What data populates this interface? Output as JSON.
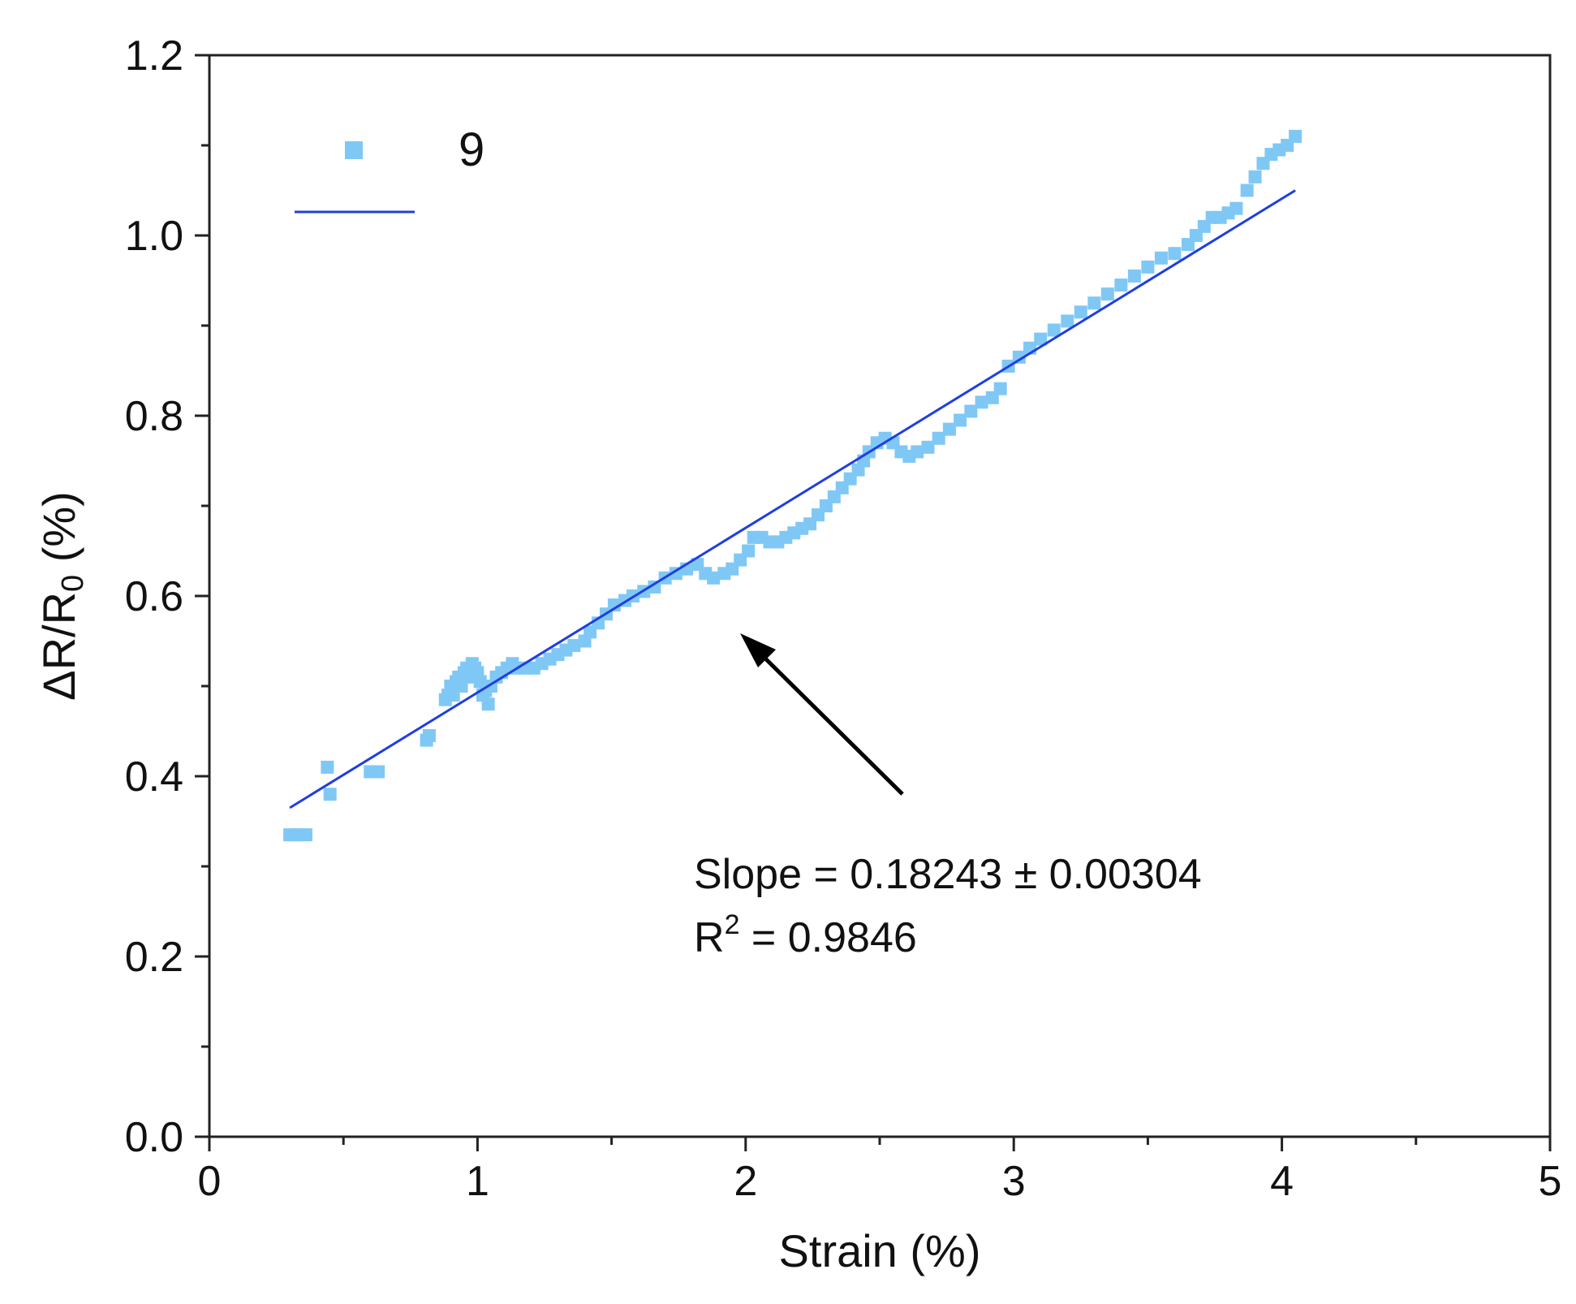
{
  "chart_data": {
    "type": "scatter",
    "xlabel": "Strain (%)",
    "ylabel": {
      "main": "ΔR/R",
      "sub": "0",
      "unit": " (%)"
    },
    "xlim": [
      0,
      5
    ],
    "ylim": [
      0,
      1.2
    ],
    "x_ticks": [
      "0",
      "1",
      "2",
      "3",
      "4",
      "5"
    ],
    "y_ticks": [
      "0.0",
      "0.2",
      "0.4",
      "0.6",
      "0.8",
      "1.0",
      "1.2"
    ],
    "grid": false,
    "legend": {
      "position": "top-left",
      "label": "9"
    },
    "colors": {
      "points": "#7fc8f5",
      "fit": "#1f3fe0",
      "arrow": "#000000"
    },
    "series": [
      {
        "name": "9",
        "kind": "scatter",
        "points": [
          [
            0.3,
            0.335
          ],
          [
            0.33,
            0.335
          ],
          [
            0.36,
            0.335
          ],
          [
            0.44,
            0.41
          ],
          [
            0.45,
            0.38
          ],
          [
            0.6,
            0.405
          ],
          [
            0.63,
            0.405
          ],
          [
            0.81,
            0.44
          ],
          [
            0.82,
            0.445
          ],
          [
            0.88,
            0.485
          ],
          [
            0.89,
            0.49
          ],
          [
            0.9,
            0.5
          ],
          [
            0.91,
            0.49
          ],
          [
            0.92,
            0.505
          ],
          [
            0.93,
            0.51
          ],
          [
            0.94,
            0.5
          ],
          [
            0.95,
            0.515
          ],
          [
            0.96,
            0.52
          ],
          [
            0.97,
            0.51
          ],
          [
            0.98,
            0.525
          ],
          [
            0.99,
            0.52
          ],
          [
            1.0,
            0.515
          ],
          [
            1.01,
            0.505
          ],
          [
            1.02,
            0.49
          ],
          [
            1.03,
            0.495
          ],
          [
            1.04,
            0.48
          ],
          [
            1.05,
            0.5
          ],
          [
            1.07,
            0.51
          ],
          [
            1.09,
            0.515
          ],
          [
            1.11,
            0.52
          ],
          [
            1.13,
            0.525
          ],
          [
            1.15,
            0.52
          ],
          [
            1.18,
            0.52
          ],
          [
            1.21,
            0.52
          ],
          [
            1.24,
            0.525
          ],
          [
            1.27,
            0.53
          ],
          [
            1.3,
            0.535
          ],
          [
            1.33,
            0.54
          ],
          [
            1.36,
            0.545
          ],
          [
            1.4,
            0.55
          ],
          [
            1.42,
            0.56
          ],
          [
            1.45,
            0.57
          ],
          [
            1.48,
            0.58
          ],
          [
            1.51,
            0.59
          ],
          [
            1.55,
            0.595
          ],
          [
            1.58,
            0.6
          ],
          [
            1.62,
            0.605
          ],
          [
            1.66,
            0.61
          ],
          [
            1.7,
            0.62
          ],
          [
            1.74,
            0.625
          ],
          [
            1.78,
            0.63
          ],
          [
            1.82,
            0.635
          ],
          [
            1.85,
            0.625
          ],
          [
            1.88,
            0.62
          ],
          [
            1.92,
            0.625
          ],
          [
            1.95,
            0.63
          ],
          [
            1.98,
            0.64
          ],
          [
            2.01,
            0.65
          ],
          [
            2.03,
            0.665
          ],
          [
            2.06,
            0.665
          ],
          [
            2.09,
            0.66
          ],
          [
            2.12,
            0.66
          ],
          [
            2.15,
            0.665
          ],
          [
            2.18,
            0.67
          ],
          [
            2.21,
            0.675
          ],
          [
            2.24,
            0.68
          ],
          [
            2.27,
            0.69
          ],
          [
            2.3,
            0.7
          ],
          [
            2.33,
            0.71
          ],
          [
            2.36,
            0.72
          ],
          [
            2.39,
            0.73
          ],
          [
            2.42,
            0.74
          ],
          [
            2.44,
            0.75
          ],
          [
            2.46,
            0.76
          ],
          [
            2.49,
            0.77
          ],
          [
            2.52,
            0.775
          ],
          [
            2.55,
            0.77
          ],
          [
            2.58,
            0.76
          ],
          [
            2.61,
            0.755
          ],
          [
            2.64,
            0.76
          ],
          [
            2.68,
            0.765
          ],
          [
            2.72,
            0.775
          ],
          [
            2.76,
            0.785
          ],
          [
            2.8,
            0.795
          ],
          [
            2.84,
            0.805
          ],
          [
            2.88,
            0.815
          ],
          [
            2.92,
            0.82
          ],
          [
            2.95,
            0.83
          ],
          [
            2.98,
            0.855
          ],
          [
            3.02,
            0.865
          ],
          [
            3.06,
            0.875
          ],
          [
            3.1,
            0.885
          ],
          [
            3.15,
            0.895
          ],
          [
            3.2,
            0.905
          ],
          [
            3.25,
            0.915
          ],
          [
            3.3,
            0.925
          ],
          [
            3.35,
            0.935
          ],
          [
            3.4,
            0.945
          ],
          [
            3.45,
            0.955
          ],
          [
            3.5,
            0.965
          ],
          [
            3.55,
            0.975
          ],
          [
            3.6,
            0.98
          ],
          [
            3.65,
            0.99
          ],
          [
            3.68,
            1.0
          ],
          [
            3.71,
            1.01
          ],
          [
            3.74,
            1.02
          ],
          [
            3.77,
            1.02
          ],
          [
            3.8,
            1.025
          ],
          [
            3.83,
            1.03
          ],
          [
            3.87,
            1.05
          ],
          [
            3.9,
            1.065
          ],
          [
            3.93,
            1.08
          ],
          [
            3.96,
            1.09
          ],
          [
            3.99,
            1.095
          ],
          [
            4.02,
            1.1
          ],
          [
            4.05,
            1.11
          ]
        ]
      },
      {
        "name": "",
        "kind": "line",
        "x": [
          0.3,
          4.05
        ],
        "y": [
          0.365,
          1.05
        ]
      }
    ],
    "annotations": [
      {
        "line1": "Slope = 0.18243 ± 0.00304",
        "line2_main": "R",
        "line2_sup": "2",
        "line2_rest": " = 0.9846"
      }
    ]
  }
}
